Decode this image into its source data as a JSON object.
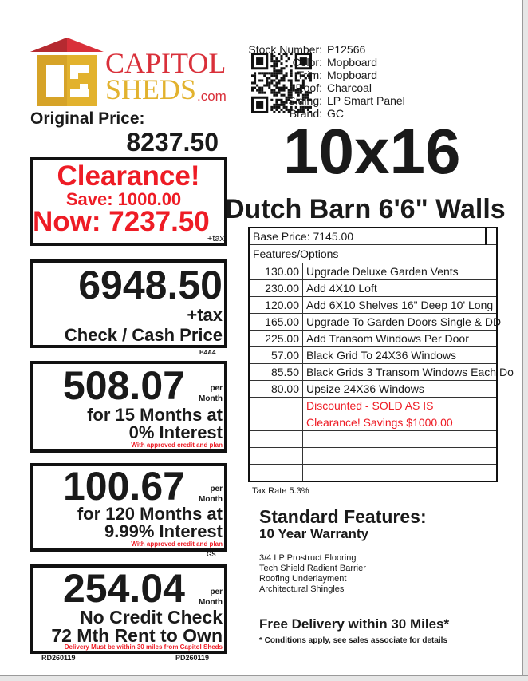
{
  "logo": {
    "line1": "CAPITOL",
    "line2": "SHEDS",
    "suffix": ".com",
    "colors": {
      "red": "#d9303a",
      "gold": "#e2b22e"
    }
  },
  "original": {
    "label": "Original Price:",
    "price": "8237.50"
  },
  "clearance": {
    "title": "Clearance!",
    "save": "Save: 1000.00",
    "now": "Now: 7237.50",
    "tax": "+tax"
  },
  "cash": {
    "price": "6948.50",
    "tax": "+tax",
    "label": "Check / Cash Price",
    "code": "B4A4"
  },
  "finance1": {
    "amount": "508.07",
    "per": "per",
    "month": "Month",
    "line1": "for 15 Months at",
    "line2": "0% Interest",
    "note": "With approved credit and plan"
  },
  "finance2": {
    "amount": "100.67",
    "per": "per",
    "month": "Month",
    "line1": "for 120 Months at",
    "line2": "9.99% Interest",
    "note": "With approved credit and plan",
    "code": "GS"
  },
  "rto": {
    "amount": "254.04",
    "per": "per",
    "month": "Month",
    "line1": "No Credit Check",
    "line2": "72 Mth Rent to Own",
    "note": "Delivery Must be within 30 miles from Capitol Sheds",
    "code_left": "RD260119",
    "code_right": "PD260119"
  },
  "specs": [
    {
      "k": "Stock Number:",
      "v": "P12566"
    },
    {
      "k": "Color:",
      "v": "Mopboard"
    },
    {
      "k": "Trim:",
      "v": "Mopboard"
    },
    {
      "k": "Roof:",
      "v": "Charcoal"
    },
    {
      "k": "Siding:",
      "v": "LP Smart Panel"
    },
    {
      "k": "Brand:",
      "v": "GC"
    }
  ],
  "size": "10x16",
  "model": "Dutch Barn 6'6\" Walls",
  "options": {
    "base": "Base Price: 7145.00",
    "header": "Features/Options",
    "rows": [
      {
        "amt": "130.00",
        "desc": "Upgrade Deluxe Garden Vents"
      },
      {
        "amt": "230.00",
        "desc": "Add 4X10 Loft"
      },
      {
        "amt": "120.00",
        "desc": "Add 6X10 Shelves 16\" Deep 10' Long"
      },
      {
        "amt": "165.00",
        "desc": "Upgrade To Garden Doors Single & DD"
      },
      {
        "amt": "225.00",
        "desc": "Add Transom Windows Per Door"
      },
      {
        "amt": "57.00",
        "desc": "Black Grid To 24X36 Windows"
      },
      {
        "amt": "85.50",
        "desc": "Black Grids 3 Transom Windows Each Do"
      },
      {
        "amt": "80.00",
        "desc": "Upsize 24X36 Windows"
      },
      {
        "amt": "",
        "desc": "Discounted - SOLD AS IS",
        "red": true
      },
      {
        "amt": "",
        "desc": "Clearance! Savings $1000.00",
        "red": true
      },
      {
        "amt": "",
        "desc": ""
      },
      {
        "amt": "",
        "desc": ""
      },
      {
        "amt": "",
        "desc": ""
      }
    ],
    "tax": "Tax Rate 5.3%"
  },
  "standard": {
    "title": "Standard Features:",
    "warranty": "10 Year Warranty",
    "items": [
      "3/4 LP Prostruct Flooring",
      "Tech Shield Radient Barrier",
      "Roofing Underlayment",
      "Architectural Shingles"
    ],
    "delivery": "Free Delivery within 30 Miles*",
    "conditions": "* Conditions apply, see sales associate for details"
  },
  "qr_icon": "qr-code-icon"
}
